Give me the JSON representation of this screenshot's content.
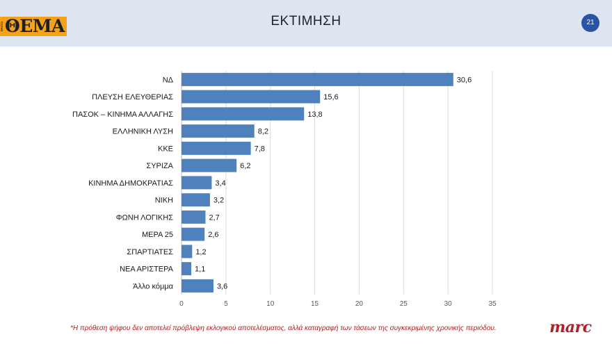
{
  "header": {
    "logo_small": "ΠΡΩΤΟ",
    "logo_text": "ΘΕΜΑ",
    "title": "ΕΚΤΙΜΗΣΗ",
    "page_number": "21"
  },
  "chart_data": {
    "type": "bar",
    "orientation": "horizontal",
    "categories": [
      "ΝΔ",
      "ΠΛΕΥΣΗ ΕΛΕΥΘΕΡΙΑΣ",
      "ΠΑΣΟΚ – ΚΙΝΗΜΑ ΑΛΛΑΓΗΣ",
      "ΕΛΛΗΝΙΚΗ ΛΥΣΗ",
      "ΚΚΕ",
      "ΣΥΡΙΖΑ",
      "ΚΙΝΗΜΑ ΔΗΜΟΚΡΑΤΙΑΣ",
      "ΝΙΚΗ",
      "ΦΩΝΗ ΛΟΓΙΚΗΣ",
      "ΜΕΡΑ 25",
      "ΣΠΑΡΤΙΑΤΕΣ",
      "ΝΕΑ ΑΡΙΣΤΕΡΑ",
      "Άλλο κόμμα"
    ],
    "values": [
      30.6,
      15.6,
      13.8,
      8.2,
      7.8,
      6.2,
      3.4,
      3.2,
      2.7,
      2.6,
      1.2,
      1.1,
      3.6
    ],
    "value_labels": [
      "30,6",
      "15,6",
      "13,8",
      "8,2",
      "7,8",
      "6,2",
      "3,4",
      "3,2",
      "2,7",
      "2,6",
      "1,2",
      "1,1",
      "3,6"
    ],
    "xlim": [
      0,
      35
    ],
    "xticks": [
      0,
      5,
      10,
      15,
      20,
      25,
      30,
      35
    ],
    "xtick_labels": [
      "0",
      "5",
      "10",
      "15",
      "20",
      "25",
      "30",
      "35"
    ],
    "grid": "vertical",
    "bar_color": "#4f81bd"
  },
  "footer": {
    "footnote": "*Η πρόθεση ψήφου δεν αποτελεί πρόβλεψη εκλογικού αποτελέσματος, αλλά καταγραφή των τάσεων της συγκεκριμένης χρονικής περιόδου.",
    "brand": "marc"
  }
}
